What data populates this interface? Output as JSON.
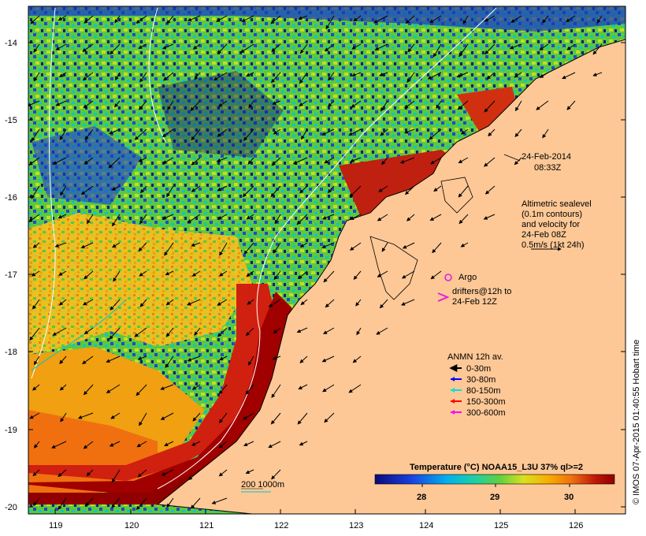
{
  "axes": {
    "lon_ticks": [
      "119",
      "120",
      "121",
      "122",
      "123",
      "124",
      "125",
      "126"
    ],
    "lat_ticks": [
      "-14",
      "-15",
      "-16",
      "-17",
      "-18",
      "-19",
      "-20"
    ],
    "lon_range": [
      118.65,
      126.7
    ],
    "lat_range": [
      -13.6,
      -20.1
    ]
  },
  "annotations": {
    "date": "24-Feb-2014",
    "time": "08:33Z",
    "alt_1": "Altimetric sealevel",
    "alt_2": "(0.1m contours)",
    "alt_3": "and velocity for",
    "alt_4": "24-Feb 08Z",
    "alt_5": "0.5m/s (1kt 24h)",
    "argo": "Argo",
    "drift_1": "drifters@12h to",
    "drift_2": "24-Feb 12Z",
    "anmn_title": "ANMN 12h av.",
    "depth_1": "0-30m",
    "depth_2": "30-80m",
    "depth_3": "80-150m",
    "depth_4": "150-300m",
    "depth_5": "300-600m",
    "isobath": "200  1000m",
    "colorbar_title": "Temperature (°C) NOAA15_L3U 37% ql>=2",
    "cb_1": "28",
    "cb_2": "29",
    "cb_3": "30",
    "credit": "© IMOS 07-Apr-2015 01:40:55 Hobart time"
  },
  "colors": {
    "land": "#fdc896",
    "argo": "#e020e0",
    "depth_1": "#000000",
    "depth_2": "#0000ff",
    "depth_3": "#00e0e0",
    "depth_4": "#ff0000",
    "depth_5": "#ff00ff"
  },
  "colorbar_range": [
    27.3,
    30.6
  ]
}
